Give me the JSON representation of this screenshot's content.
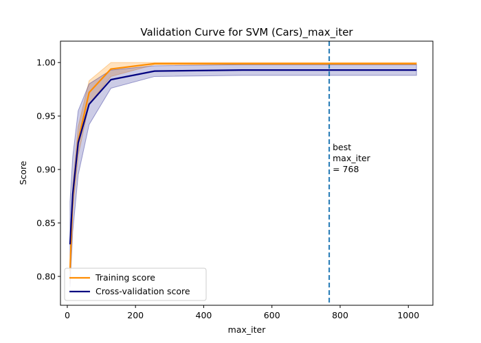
{
  "chart_data": {
    "type": "line",
    "title": "Validation Curve for SVM (Cars)_max_iter",
    "xlabel": "max_iter",
    "ylabel": "Score",
    "xlim": [
      -20,
      1072
    ],
    "ylim": [
      0.773,
      1.02
    ],
    "xticks": [
      0,
      200,
      400,
      600,
      800,
      1000
    ],
    "xtick_labels": [
      "0",
      "200",
      "400",
      "600",
      "800",
      "1000"
    ],
    "yticks": [
      0.8,
      0.85,
      0.9,
      0.95,
      1.0
    ],
    "ytick_labels": [
      "0.80",
      "0.85",
      "0.90",
      "0.95",
      "1.00"
    ],
    "grid": false,
    "legend_position": "lower-left",
    "x": [
      8,
      16,
      32,
      64,
      128,
      256,
      512,
      768,
      1024
    ],
    "series": [
      {
        "name": "Training score",
        "color": "#ff8c00",
        "values": [
          0.805,
          0.874,
          0.927,
          0.972,
          0.994,
          0.999,
          0.999,
          0.999,
          0.999
        ],
        "band_upper": [
          0.815,
          0.885,
          0.94,
          0.983,
          1.0,
          1.0,
          1.0,
          1.0,
          1.0
        ],
        "band_lower": [
          0.793,
          0.862,
          0.913,
          0.961,
          0.987,
          0.998,
          0.998,
          0.998,
          0.998
        ]
      },
      {
        "name": "Cross-validation score",
        "color": "#000080",
        "values": [
          0.83,
          0.877,
          0.925,
          0.961,
          0.984,
          0.992,
          0.993,
          0.993,
          0.993
        ],
        "band_upper": [
          0.87,
          0.912,
          0.955,
          0.98,
          0.993,
          0.997,
          0.998,
          0.998,
          0.998
        ],
        "band_lower": [
          0.79,
          0.842,
          0.895,
          0.942,
          0.976,
          0.987,
          0.988,
          0.988,
          0.988
        ]
      }
    ],
    "vline": {
      "x": 768,
      "color": "#1f77b4",
      "label_lines": [
        "best",
        "max_iter",
        "= 768"
      ]
    }
  }
}
